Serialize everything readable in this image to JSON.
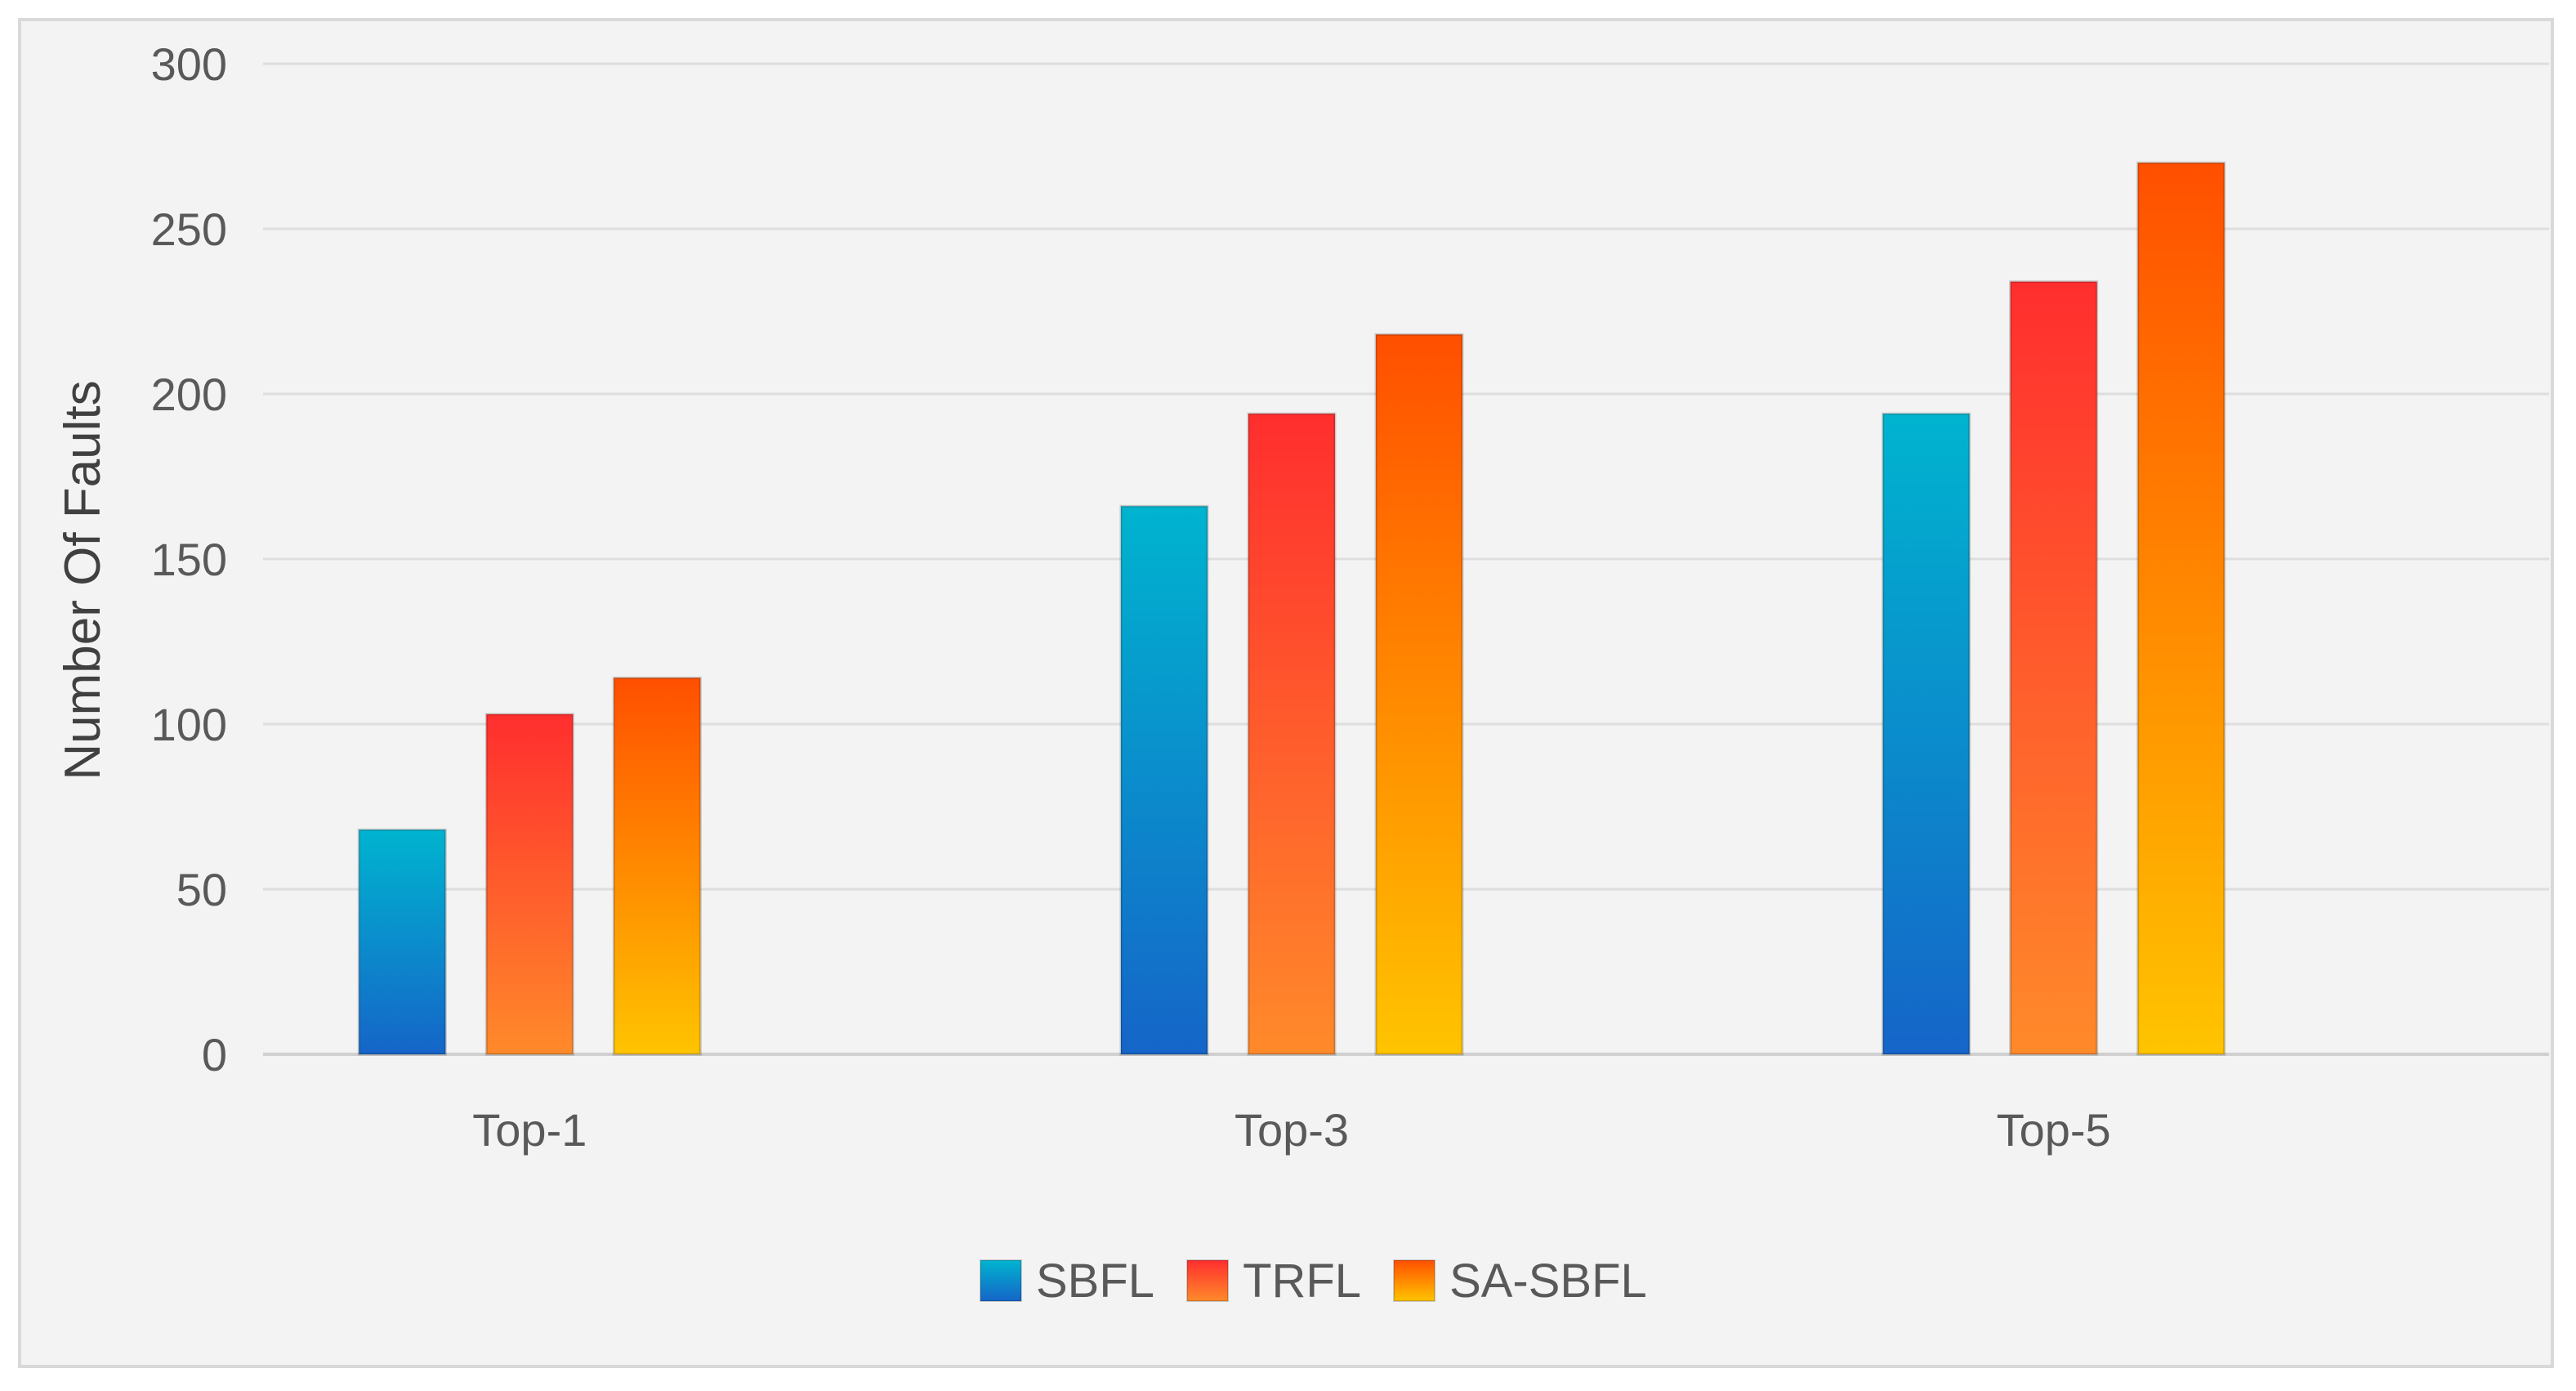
{
  "chart_data": {
    "type": "bar",
    "title": "",
    "xlabel": "",
    "ylabel": "Number Of Faults",
    "ylim": [
      0,
      300
    ],
    "yticks": [
      0,
      50,
      100,
      150,
      200,
      250,
      300
    ],
    "categories": [
      "Top-1",
      "Top-3",
      "Top-5"
    ],
    "series": [
      {
        "name": "SBFL",
        "values": [
          68,
          166,
          194
        ]
      },
      {
        "name": "TRFL",
        "values": [
          103,
          194,
          234
        ]
      },
      {
        "name": "SA-SBFL",
        "values": [
          114,
          218,
          270
        ]
      }
    ],
    "grid": true,
    "legend_position": "bottom",
    "colors": {
      "SBFL": [
        "#00b4cf",
        "#1565c8"
      ],
      "TRFL": [
        "#ff2e2e",
        "#ff8a2a"
      ],
      "SA-SBFL": [
        "#ff4f00",
        "#ffc400"
      ]
    }
  }
}
